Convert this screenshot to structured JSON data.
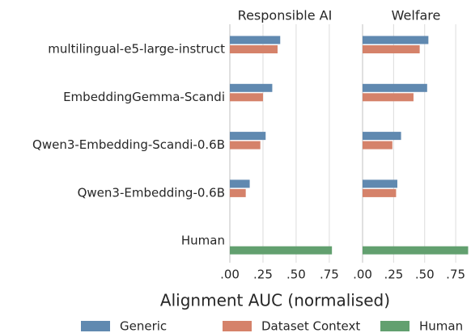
{
  "chart_data": {
    "type": "bar",
    "orientation": "horizontal",
    "categories": [
      "multilingual-e5-large-instruct",
      "EmbeddingGemma-Scandi",
      "Qwen3-Embedding-Scandi-0.6B",
      "Qwen3-Embedding-0.6B",
      "Human"
    ],
    "xlabel": "Alignment AUC (normalised)",
    "grid": true,
    "legend": "bottom",
    "series": [
      {
        "name": "Generic",
        "color": "#6089b0"
      },
      {
        "name": "Dataset Context",
        "color": "#d5826a"
      },
      {
        "name": "Human",
        "color": "#62a06f"
      }
    ],
    "panels": [
      {
        "title": "Responsible AI",
        "xlim": [
          0,
          0.83
        ],
        "xticks": [
          {
            "value": 0,
            "label": ".00"
          },
          {
            "value": 0.25,
            "label": ".25"
          },
          {
            "value": 0.5,
            "label": ".50"
          },
          {
            "value": 0.75,
            "label": ".75"
          }
        ],
        "series": [
          {
            "values": [
              0.38,
              0.32,
              0.27,
              0.15,
              null
            ]
          },
          {
            "values": [
              0.36,
              0.25,
              0.23,
              0.12,
              null
            ]
          },
          {
            "values": [
              null,
              null,
              null,
              null,
              0.77
            ]
          }
        ]
      },
      {
        "title": "Welfare",
        "xlim": [
          0,
          0.86
        ],
        "xticks": [
          {
            "value": 0,
            "label": ".00"
          },
          {
            "value": 0.25,
            "label": ".25"
          },
          {
            "value": 0.5,
            "label": ".50"
          },
          {
            "value": 0.75,
            "label": ".75"
          }
        ],
        "series": [
          {
            "values": [
              0.53,
              0.52,
              0.31,
              0.28,
              null
            ]
          },
          {
            "values": [
              0.46,
              0.41,
              0.24,
              0.27,
              null
            ]
          },
          {
            "values": [
              null,
              null,
              null,
              null,
              0.85
            ]
          }
        ]
      }
    ]
  }
}
